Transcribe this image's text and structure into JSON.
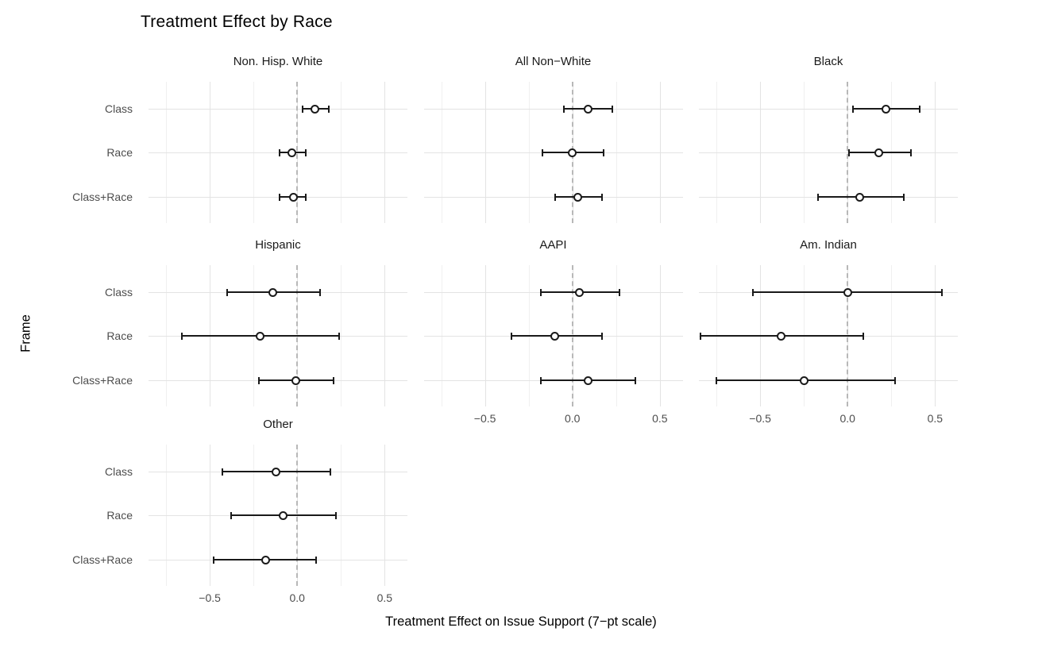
{
  "title": "Treatment Effect by Race",
  "x_axis_title": "Treatment Effect on Issue Support (7−pt scale)",
  "y_axis_title": "Frame",
  "colors": {
    "point_and_line": "#1a1a1a",
    "major_grid": "#e3e3e3",
    "minor_grid": "#f0f0f0",
    "zero_dash": "#b8b8b8",
    "tick_text": "#4d4d4d",
    "strip_text": "#1a1a1a"
  },
  "chart_data": {
    "type": "scatter",
    "variant": "faceted-pointrange-forest",
    "title": "Treatment Effect by Race",
    "xlabel": "Treatment Effect on Issue Support (7−pt scale)",
    "ylabel": "Frame",
    "categories_y": [
      "Class",
      "Race",
      "Class+Race"
    ],
    "x_ticks": [
      -0.5,
      0.0,
      0.5
    ],
    "x_tick_labels": [
      "−0.5",
      "0.0",
      "0.5"
    ],
    "xlim": [
      -0.85,
      0.63
    ],
    "minor_gridlines_x": [
      -0.75,
      -0.25,
      0.25
    ],
    "major_gridlines_x": [
      -0.5,
      0.0,
      0.5
    ],
    "reference_line_x": 0,
    "grid": true,
    "legend_position": "none",
    "facets": [
      {
        "label": "Non. Hisp. White",
        "row": 0,
        "col": 0,
        "show_x_axis": false,
        "estimates": [
          {
            "frame": "Class",
            "est": 0.1,
            "lo": 0.03,
            "hi": 0.18
          },
          {
            "frame": "Race",
            "est": -0.03,
            "lo": -0.1,
            "hi": 0.05
          },
          {
            "frame": "Class+Race",
            "est": -0.02,
            "lo": -0.1,
            "hi": 0.05
          }
        ]
      },
      {
        "label": "All Non−White",
        "row": 0,
        "col": 1,
        "show_x_axis": false,
        "estimates": [
          {
            "frame": "Class",
            "est": 0.09,
            "lo": -0.05,
            "hi": 0.23
          },
          {
            "frame": "Race",
            "est": 0.0,
            "lo": -0.17,
            "hi": 0.18
          },
          {
            "frame": "Class+Race",
            "est": 0.03,
            "lo": -0.1,
            "hi": 0.17
          }
        ]
      },
      {
        "label": "Black",
        "row": 0,
        "col": 2,
        "show_x_axis": false,
        "estimates": [
          {
            "frame": "Class",
            "est": 0.22,
            "lo": 0.03,
            "hi": 0.41
          },
          {
            "frame": "Race",
            "est": 0.18,
            "lo": 0.01,
            "hi": 0.36
          },
          {
            "frame": "Class+Race",
            "est": 0.07,
            "lo": -0.17,
            "hi": 0.32
          }
        ]
      },
      {
        "label": "Hispanic",
        "row": 1,
        "col": 0,
        "show_x_axis": false,
        "estimates": [
          {
            "frame": "Class",
            "est": -0.14,
            "lo": -0.4,
            "hi": 0.13
          },
          {
            "frame": "Race",
            "est": -0.21,
            "lo": -0.66,
            "hi": 0.24
          },
          {
            "frame": "Class+Race",
            "est": -0.01,
            "lo": -0.22,
            "hi": 0.21
          }
        ]
      },
      {
        "label": "AAPI",
        "row": 1,
        "col": 1,
        "show_x_axis": true,
        "estimates": [
          {
            "frame": "Class",
            "est": 0.04,
            "lo": -0.18,
            "hi": 0.27
          },
          {
            "frame": "Race",
            "est": -0.1,
            "lo": -0.35,
            "hi": 0.17
          },
          {
            "frame": "Class+Race",
            "est": 0.09,
            "lo": -0.18,
            "hi": 0.36
          }
        ]
      },
      {
        "label": "Am. Indian",
        "row": 1,
        "col": 2,
        "show_x_axis": true,
        "estimates": [
          {
            "frame": "Class",
            "est": 0.0,
            "lo": -0.54,
            "hi": 0.54
          },
          {
            "frame": "Race",
            "est": -0.38,
            "lo": -0.84,
            "hi": 0.09
          },
          {
            "frame": "Class+Race",
            "est": -0.25,
            "lo": -0.75,
            "hi": 0.27
          }
        ]
      },
      {
        "label": "Other",
        "row": 2,
        "col": 0,
        "show_x_axis": true,
        "estimates": [
          {
            "frame": "Class",
            "est": -0.12,
            "lo": -0.43,
            "hi": 0.19
          },
          {
            "frame": "Race",
            "est": -0.08,
            "lo": -0.38,
            "hi": 0.22
          },
          {
            "frame": "Class+Race",
            "est": -0.18,
            "lo": -0.48,
            "hi": 0.11
          }
        ]
      }
    ]
  }
}
